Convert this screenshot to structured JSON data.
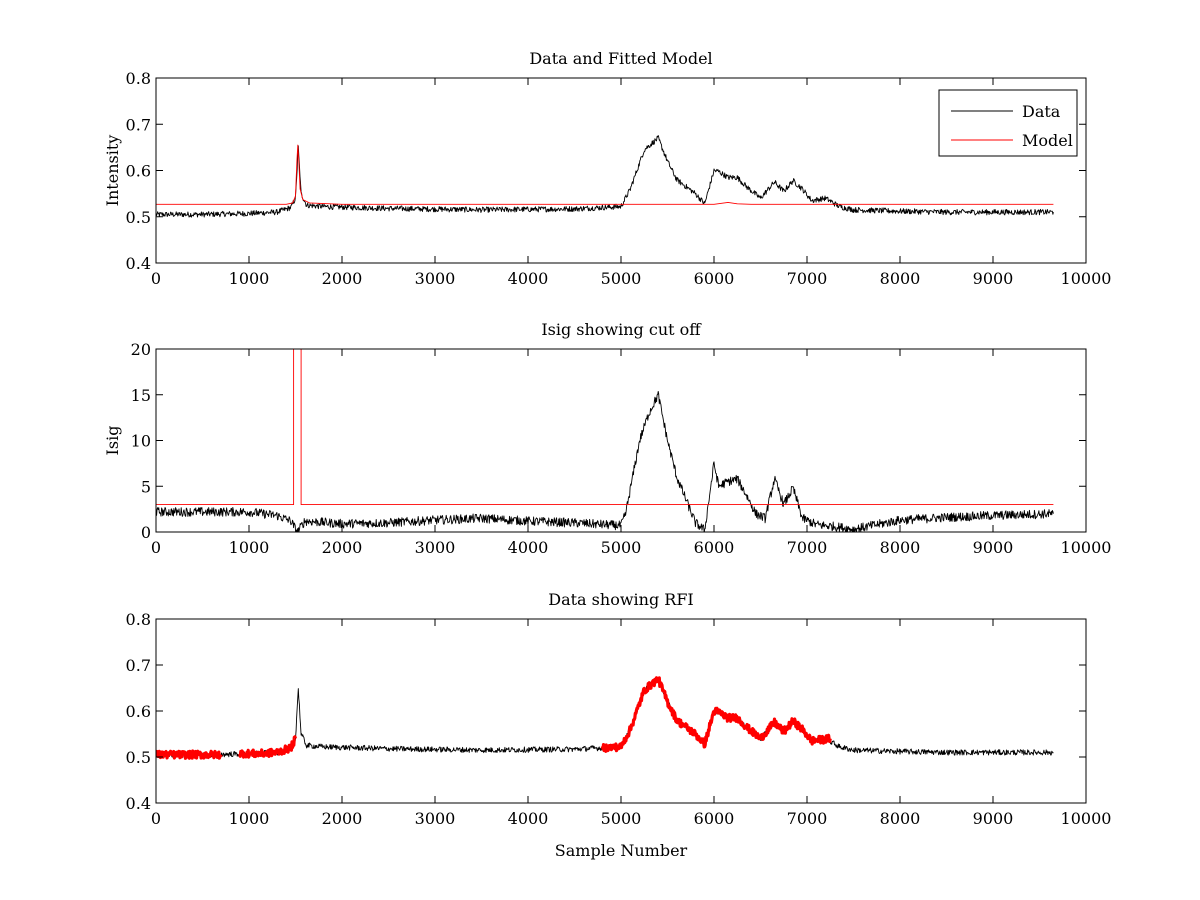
{
  "figure": {
    "background": "#ffffff"
  },
  "chart_data": [
    {
      "type": "line",
      "title": "Data and Fitted Model",
      "xlabel": "",
      "ylabel": "Intensity",
      "xlim": [
        0,
        10000
      ],
      "ylim": [
        0.4,
        0.8
      ],
      "xticks": [
        0,
        1000,
        2000,
        3000,
        4000,
        5000,
        6000,
        7000,
        8000,
        9000,
        10000
      ],
      "yticks": [
        0.4,
        0.5,
        0.6,
        0.7,
        0.8
      ],
      "ytick_labels": [
        "0.4",
        "0.5",
        "0.6",
        "0.7",
        "0.8"
      ],
      "grid": false,
      "legend": {
        "position": "top-right",
        "entries": [
          "Data",
          "Model"
        ]
      },
      "series": [
        {
          "name": "Data",
          "color": "#000000",
          "noise": 0.006,
          "x": [
            0,
            500,
            1000,
            1300,
            1450,
            1500,
            1530,
            1560,
            1620,
            1800,
            2500,
            3500,
            4500,
            5000,
            5100,
            5250,
            5400,
            5500,
            5600,
            5800,
            5900,
            6000,
            6050,
            6150,
            6250,
            6350,
            6500,
            6650,
            6750,
            6850,
            6950,
            7050,
            7200,
            7350,
            7500,
            8000,
            8500,
            9000,
            9650
          ],
          "y": [
            0.505,
            0.505,
            0.507,
            0.51,
            0.52,
            0.54,
            0.65,
            0.55,
            0.525,
            0.522,
            0.518,
            0.515,
            0.517,
            0.522,
            0.56,
            0.645,
            0.67,
            0.62,
            0.58,
            0.55,
            0.528,
            0.6,
            0.598,
            0.585,
            0.585,
            0.565,
            0.54,
            0.575,
            0.555,
            0.578,
            0.56,
            0.535,
            0.54,
            0.522,
            0.515,
            0.512,
            0.51,
            0.51,
            0.51
          ]
        },
        {
          "name": "Model",
          "color": "#ff0000",
          "noise": 0,
          "x": [
            0,
            1400,
            1470,
            1500,
            1515,
            1525,
            1535,
            1550,
            1580,
            1650,
            2000,
            6000,
            6150,
            6250,
            6400,
            9650
          ],
          "y": [
            0.527,
            0.527,
            0.53,
            0.545,
            0.62,
            0.655,
            0.62,
            0.56,
            0.537,
            0.53,
            0.527,
            0.527,
            0.531,
            0.528,
            0.527,
            0.527
          ]
        }
      ]
    },
    {
      "type": "line",
      "title": "Isig showing cut off",
      "xlabel": "",
      "ylabel": "Isig",
      "xlim": [
        0,
        10000
      ],
      "ylim": [
        0,
        20
      ],
      "xticks": [
        0,
        1000,
        2000,
        3000,
        4000,
        5000,
        6000,
        7000,
        8000,
        9000,
        10000
      ],
      "yticks": [
        0,
        5,
        10,
        15,
        20
      ],
      "ytick_labels": [
        "0",
        "5",
        "10",
        "15",
        "20"
      ],
      "grid": false,
      "series": [
        {
          "name": "",
          "color": "#000000",
          "noise": 0.5,
          "x": [
            0,
            500,
            1000,
            1300,
            1450,
            1520,
            1600,
            2000,
            2500,
            3000,
            3500,
            4000,
            4500,
            5000,
            5050,
            5200,
            5300,
            5400,
            5500,
            5600,
            5700,
            5800,
            5900,
            6000,
            6050,
            6150,
            6250,
            6350,
            6450,
            6550,
            6650,
            6750,
            6850,
            6950,
            7100,
            7300,
            7500,
            8000,
            8500,
            9000,
            9650
          ],
          "y": [
            2.2,
            2.2,
            2.2,
            1.8,
            1.2,
            0.0,
            1.2,
            0.9,
            1.0,
            1.3,
            1.5,
            1.2,
            1.0,
            0.7,
            2.0,
            10.0,
            13.0,
            15.0,
            10.0,
            6.0,
            3.5,
            1.0,
            0.2,
            7.5,
            5.0,
            5.5,
            5.8,
            4.0,
            2.0,
            1.5,
            5.8,
            3.0,
            4.8,
            1.5,
            0.8,
            0.6,
            0.3,
            1.3,
            1.6,
            1.8,
            2.0
          ]
        },
        {
          "name": "",
          "color": "#ff0000",
          "noise": 0,
          "x": [
            0,
            1480,
            1480,
            1560,
            1560,
            9650
          ],
          "y": [
            3,
            3,
            20,
            20,
            3,
            3
          ]
        }
      ]
    },
    {
      "type": "line",
      "title": "Data showing RFI",
      "xlabel": "Sample Number",
      "ylabel": "",
      "xlim": [
        0,
        10000
      ],
      "ylim": [
        0.4,
        0.8
      ],
      "xticks": [
        0,
        1000,
        2000,
        3000,
        4000,
        5000,
        6000,
        7000,
        8000,
        9000,
        10000
      ],
      "yticks": [
        0.4,
        0.5,
        0.6,
        0.7,
        0.8
      ],
      "ytick_labels": [
        "0.4",
        "0.5",
        "0.6",
        "0.7",
        "0.8"
      ],
      "grid": false,
      "series": [
        {
          "name": "",
          "color": "#000000",
          "noise": 0.006,
          "x": [
            0,
            500,
            1000,
            1300,
            1450,
            1500,
            1530,
            1560,
            1620,
            1800,
            2500,
            3500,
            4500,
            5000,
            5100,
            5250,
            5400,
            5500,
            5600,
            5800,
            5900,
            6000,
            6050,
            6150,
            6250,
            6350,
            6500,
            6650,
            6750,
            6850,
            6950,
            7050,
            7200,
            7350,
            7500,
            8000,
            8500,
            9000,
            9650
          ],
          "y": [
            0.505,
            0.505,
            0.507,
            0.51,
            0.52,
            0.54,
            0.65,
            0.55,
            0.525,
            0.522,
            0.518,
            0.515,
            0.517,
            0.522,
            0.56,
            0.645,
            0.67,
            0.62,
            0.58,
            0.55,
            0.528,
            0.6,
            0.598,
            0.585,
            0.585,
            0.565,
            0.54,
            0.575,
            0.555,
            0.578,
            0.56,
            0.535,
            0.54,
            0.522,
            0.515,
            0.512,
            0.51,
            0.51,
            0.51
          ]
        },
        {
          "name": "",
          "color": "#ff0000",
          "noise": 0.008,
          "segments": [
            {
              "x": [
                0,
                700
              ],
              "y": [
                0.505,
                0.505
              ]
            },
            {
              "x": [
                900,
                1100,
                1300,
                1450,
                1500
              ],
              "y": [
                0.508,
                0.507,
                0.51,
                0.52,
                0.54
              ]
            },
            {
              "x": [
                4800,
                5000,
                5100,
                5250,
                5400,
                5500,
                5600,
                5800,
                5900,
                6000,
                6050,
                6150,
                6250,
                6350,
                6500,
                6650,
                6750,
                6850,
                6950,
                7050,
                7250
              ],
              "y": [
                0.52,
                0.522,
                0.56,
                0.645,
                0.67,
                0.62,
                0.58,
                0.55,
                0.528,
                0.6,
                0.598,
                0.585,
                0.585,
                0.565,
                0.54,
                0.575,
                0.555,
                0.578,
                0.56,
                0.535,
                0.54
              ]
            }
          ]
        }
      ]
    }
  ]
}
